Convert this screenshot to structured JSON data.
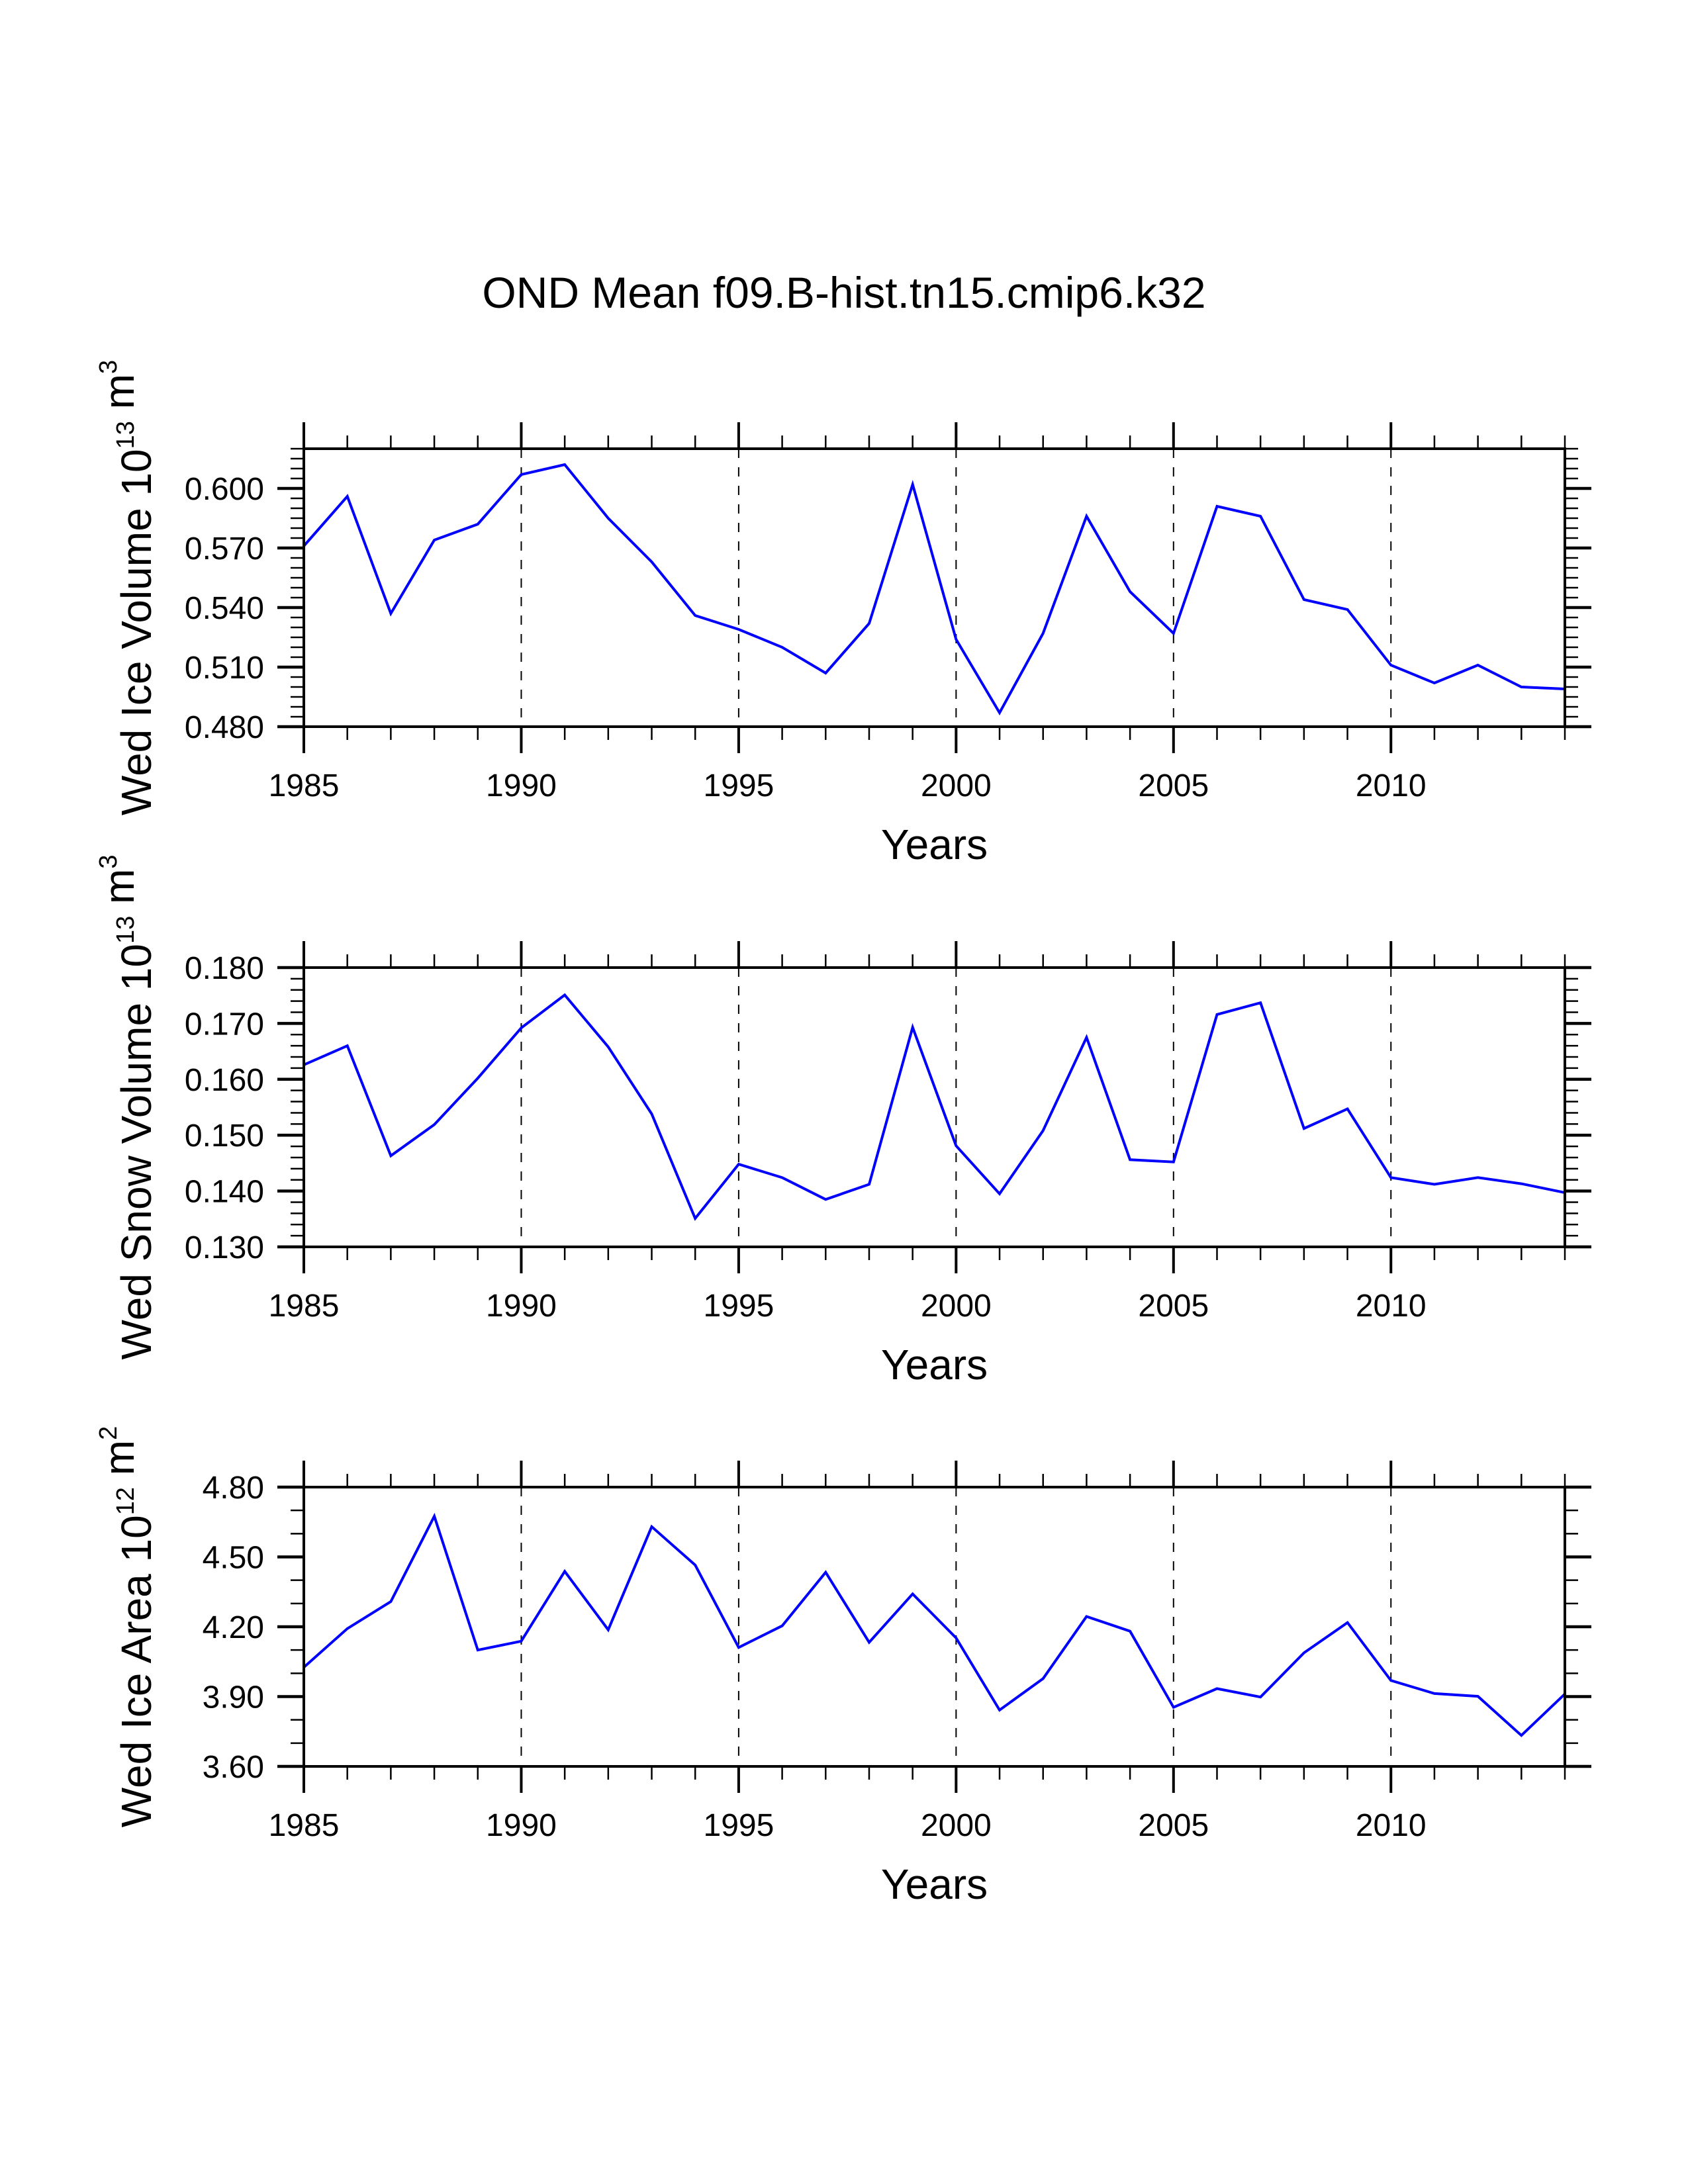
{
  "figure": {
    "title": "OND Mean f09.B-hist.tn15.cmip6.k32",
    "line_color": "#0000ff",
    "axis_color": "#000000",
    "grid_style": "dashed vertical at major x ticks"
  },
  "chart_data": [
    {
      "type": "line",
      "title": "",
      "xlabel": "Years",
      "ylabel": "Wed Ice Volume",
      "ylabel_units": {
        "base": "10",
        "exp": "13",
        "unit": "m",
        "unit_exp": "3"
      },
      "xlim": [
        1985,
        2014
      ],
      "ylim": [
        0.48,
        0.62
      ],
      "x_ticks": [
        1985,
        1990,
        1995,
        2000,
        2005,
        2010
      ],
      "x_tick_labels": [
        "1985",
        "1990",
        "1995",
        "2000",
        "2005",
        "2010"
      ],
      "y_ticks": [
        0.48,
        0.51,
        0.54,
        0.57,
        0.6
      ],
      "y_tick_labels": [
        "0.480",
        "0.510",
        "0.540",
        "0.570",
        "0.600"
      ],
      "y_minor_step": 0.005,
      "grid": true,
      "x": [
        1985,
        1986,
        1987,
        1988,
        1989,
        1990,
        1991,
        1992,
        1993,
        1994,
        1995,
        1996,
        1997,
        1998,
        1999,
        2000,
        2001,
        2002,
        2003,
        2004,
        2005,
        2006,
        2007,
        2008,
        2009,
        2010,
        2011,
        2012,
        2013,
        2014
      ],
      "series": [
        {
          "name": "Wed Ice Volume",
          "values": [
            0.571,
            0.596,
            0.537,
            0.574,
            0.582,
            0.607,
            0.612,
            0.585,
            0.563,
            0.536,
            0.529,
            0.52,
            0.507,
            0.532,
            0.602,
            0.524,
            0.487,
            0.527,
            0.586,
            0.548,
            0.527,
            0.591,
            0.586,
            0.544,
            0.539,
            0.511,
            0.502,
            0.511,
            0.5,
            0.499
          ]
        }
      ]
    },
    {
      "type": "line",
      "title": "",
      "xlabel": "Years",
      "ylabel": "Wed Snow Volume",
      "ylabel_units": {
        "base": "10",
        "exp": "13",
        "unit": "m",
        "unit_exp": "3"
      },
      "xlim": [
        1985,
        2014
      ],
      "ylim": [
        0.13,
        0.18
      ],
      "x_ticks": [
        1985,
        1990,
        1995,
        2000,
        2005,
        2010
      ],
      "x_tick_labels": [
        "1985",
        "1990",
        "1995",
        "2000",
        "2005",
        "2010"
      ],
      "y_ticks": [
        0.13,
        0.14,
        0.15,
        0.16,
        0.17,
        0.18
      ],
      "y_tick_labels": [
        "0.130",
        "0.140",
        "0.150",
        "0.160",
        "0.170",
        "0.180"
      ],
      "y_minor_step": 0.002,
      "grid": true,
      "x": [
        1985,
        1986,
        1987,
        1988,
        1989,
        1990,
        1991,
        1992,
        1993,
        1994,
        1995,
        1996,
        1997,
        1998,
        1999,
        2000,
        2001,
        2002,
        2003,
        2004,
        2005,
        2006,
        2007,
        2008,
        2009,
        2010,
        2011,
        2012,
        2013,
        2014
      ],
      "series": [
        {
          "name": "Wed Snow Volume",
          "values": [
            0.1626,
            0.166,
            0.1463,
            0.1519,
            0.1602,
            0.1692,
            0.1751,
            0.1658,
            0.1538,
            0.1351,
            0.1448,
            0.1424,
            0.1385,
            0.1412,
            0.1693,
            0.1481,
            0.1395,
            0.1508,
            0.1675,
            0.1456,
            0.1452,
            0.1716,
            0.1737,
            0.1512,
            0.1547,
            0.1424,
            0.1412,
            0.1424,
            0.1413,
            0.1397
          ]
        }
      ]
    },
    {
      "type": "line",
      "title": "",
      "xlabel": "Years",
      "ylabel": "Wed Ice Area",
      "ylabel_units": {
        "base": "10",
        "exp": "12",
        "unit": "m",
        "unit_exp": "2"
      },
      "xlim": [
        1985,
        2014
      ],
      "ylim": [
        3.6,
        4.8
      ],
      "x_ticks": [
        1985,
        1990,
        1995,
        2000,
        2005,
        2010
      ],
      "x_tick_labels": [
        "1985",
        "1990",
        "1995",
        "2000",
        "2005",
        "2010"
      ],
      "y_ticks": [
        3.6,
        3.9,
        4.2,
        4.5,
        4.8
      ],
      "y_tick_labels": [
        "3.60",
        "3.90",
        "4.20",
        "4.50",
        "4.80"
      ],
      "y_minor_step": 0.1,
      "grid": true,
      "x": [
        1985,
        1986,
        1987,
        1988,
        1989,
        1990,
        1991,
        1992,
        1993,
        1994,
        1995,
        1996,
        1997,
        1998,
        1999,
        2000,
        2001,
        2002,
        2003,
        2004,
        2005,
        2006,
        2007,
        2008,
        2009,
        2010,
        2011,
        2012,
        2013,
        2014
      ],
      "series": [
        {
          "name": "Wed Ice Area",
          "values": [
            4.026,
            4.192,
            4.308,
            4.675,
            4.1,
            4.138,
            4.438,
            4.187,
            4.63,
            4.465,
            4.111,
            4.204,
            4.434,
            4.133,
            4.341,
            4.152,
            3.842,
            3.977,
            4.244,
            4.181,
            3.854,
            3.934,
            3.898,
            4.088,
            4.218,
            3.969,
            3.913,
            3.901,
            3.733,
            3.911
          ]
        }
      ]
    }
  ]
}
